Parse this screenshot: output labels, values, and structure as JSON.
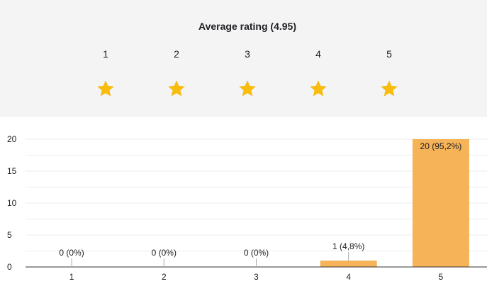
{
  "rating": {
    "title": "Average rating (4.95)",
    "average": 4.95,
    "max": 5,
    "star_labels": [
      "1",
      "2",
      "3",
      "4",
      "5"
    ],
    "star_fill": [
      1,
      1,
      1,
      1,
      0.95
    ]
  },
  "colors": {
    "star_on": "#f9bc0b",
    "star_off": "#bdbdbd",
    "bar": "#f6b358",
    "grid": "#ececec",
    "axis": "#333333",
    "text": "#202124"
  },
  "chart_data": {
    "type": "bar",
    "categories": [
      "1",
      "2",
      "3",
      "4",
      "5"
    ],
    "values": [
      0,
      0,
      0,
      1,
      20
    ],
    "data_labels": [
      "0 (0%)",
      "0 (0%)",
      "0 (0%)",
      "1 (4,8%)",
      "20 (95,2%)"
    ],
    "yticks": [
      0,
      5,
      10,
      15,
      20
    ],
    "ylim": [
      0,
      20
    ],
    "grid": true
  }
}
